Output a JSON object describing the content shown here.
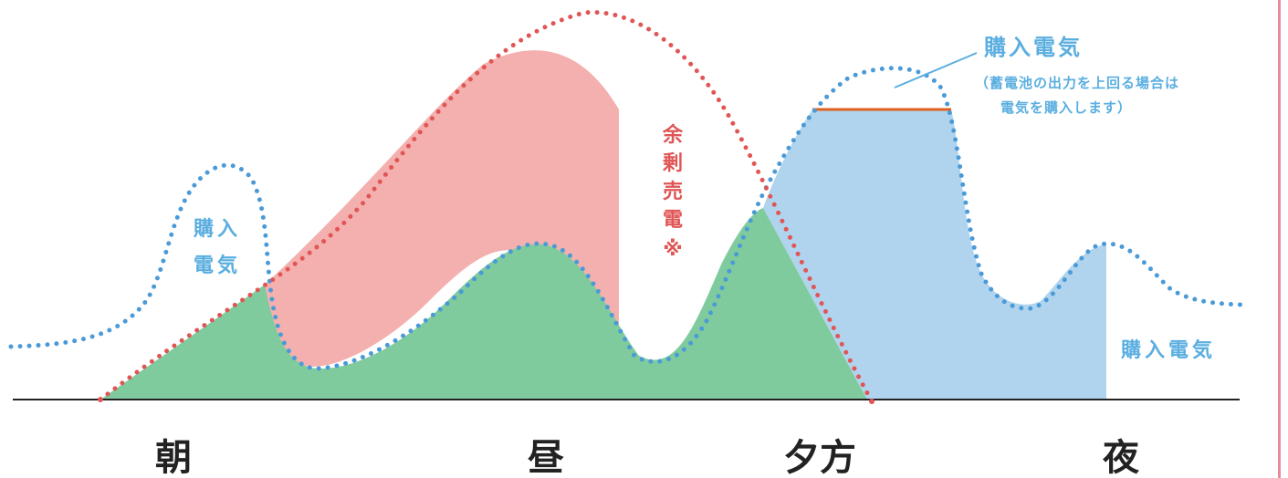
{
  "labels": {
    "purchase_left_line1": "購入",
    "purchase_left_line2": "電気",
    "surplus_sale_chars": [
      "余",
      "剰",
      "売",
      "電",
      "※"
    ],
    "purchase_top": "購入電気",
    "purchase_top_note_line1": "（蓄電池の出力を上回る場合は",
    "purchase_top_note_line2": "電気を購入します）",
    "purchase_right": "購入電気"
  },
  "time_labels": [
    "朝",
    "昼",
    "夕方",
    "夜"
  ],
  "colors": {
    "solar_generation_dots": "#e05555",
    "consumption_dots": "#4a9ad8",
    "self_consumption_fill": "#7fcb9e",
    "surplus_fill": "#f4b0ae",
    "battery_fill": "#b0d4ee",
    "purchase_cap_line": "#e06020",
    "purchase_text": "#5aaee0",
    "surplus_text": "#e05555",
    "time_text": "#222222",
    "baseline": "#222222"
  }
}
